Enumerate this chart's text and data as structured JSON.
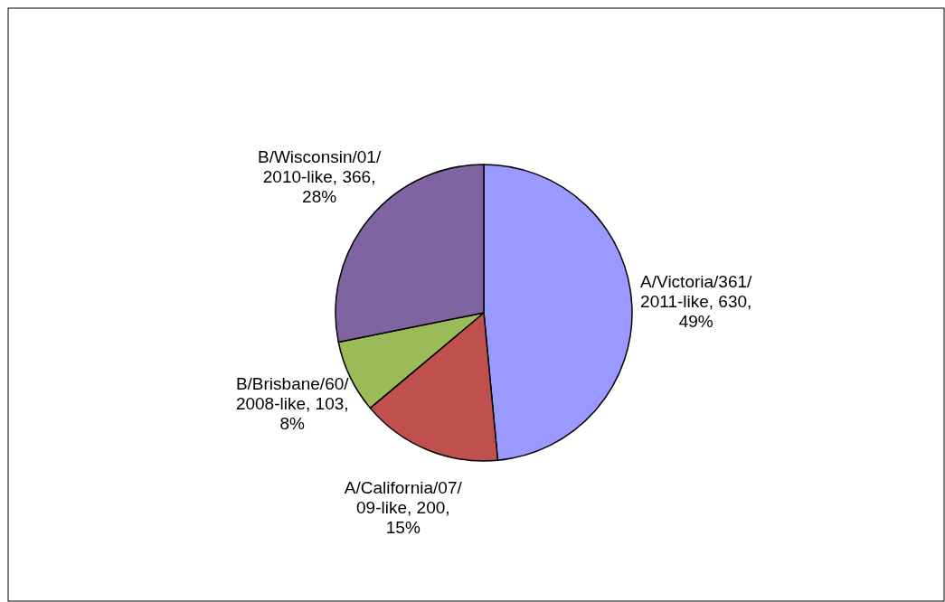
{
  "chart_data": {
    "type": "pie",
    "categories": [
      "A/Victoria/361/2011-like",
      "A/California/07/09-like",
      "B/Brisbane/60/2008-like",
      "B/Wisconsin/01/2010-like"
    ],
    "values": [
      630,
      200,
      103,
      366
    ],
    "colors": [
      "#9999ff",
      "#c0504d",
      "#9bbb59",
      "#8064a2"
    ],
    "value_labels": [
      "630, 49%",
      "200, 15%",
      "103, 8%",
      "366, 28%"
    ]
  }
}
